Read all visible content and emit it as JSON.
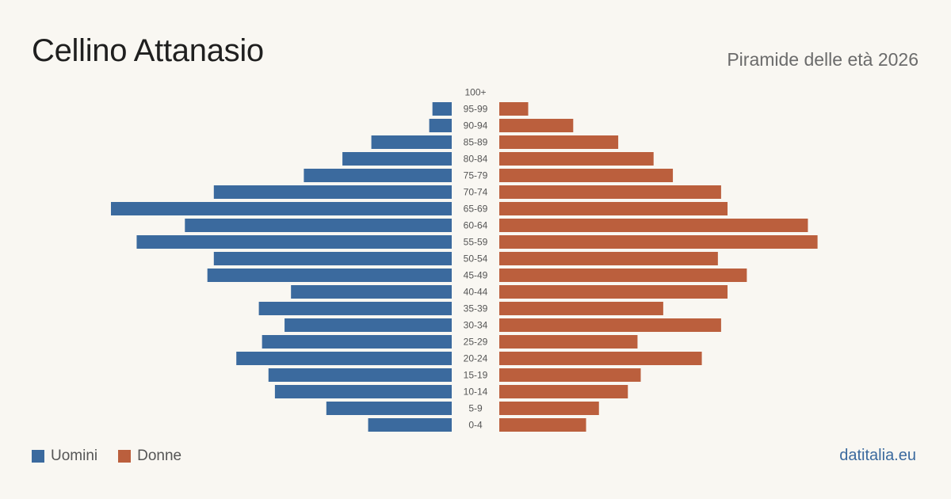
{
  "title": "Cellino Attanasio",
  "subtitle": "Piramide delle età 2026",
  "brand": "datitalia.eu",
  "legend": {
    "men_label": "Uomini",
    "women_label": "Donne",
    "men_color": "#3b6a9e",
    "women_color": "#bb5f3d"
  },
  "chart_data": {
    "type": "bar",
    "orientation": "horizontal-pyramid",
    "categories": [
      "100+",
      "95-99",
      "90-94",
      "85-89",
      "80-84",
      "75-79",
      "70-74",
      "65-69",
      "60-64",
      "55-59",
      "50-54",
      "45-49",
      "40-44",
      "35-39",
      "30-34",
      "25-29",
      "20-24",
      "15-19",
      "10-14",
      "5-9",
      "0-4"
    ],
    "series": [
      {
        "name": "Uomini",
        "color": "#3b6a9e",
        "values": [
          0,
          3,
          3.5,
          12.5,
          17,
          23,
          37,
          53,
          41.5,
          49,
          37,
          38,
          25,
          30,
          26,
          29.5,
          33.5,
          28.5,
          27.5,
          19.5,
          13
        ]
      },
      {
        "name": "Donne",
        "color": "#bb5f3d",
        "values": [
          0,
          4.5,
          11.5,
          18.5,
          24,
          27,
          34.5,
          35.5,
          48,
          49.5,
          34,
          38.5,
          35.5,
          25.5,
          34.5,
          21.5,
          31.5,
          22,
          20,
          15.5,
          13.5
        ]
      }
    ],
    "max": 53
  }
}
